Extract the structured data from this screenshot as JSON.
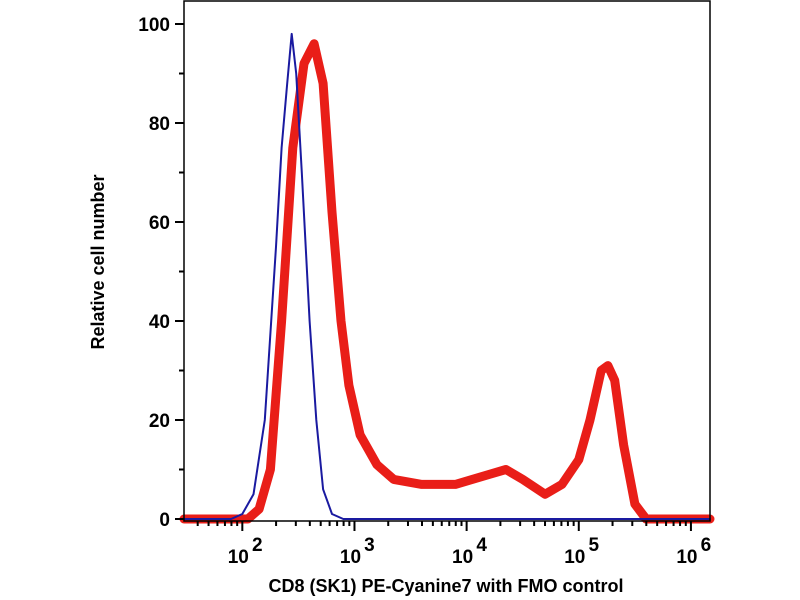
{
  "chart_data": {
    "type": "line",
    "title": "",
    "xlabel": "CD8 (SK1) PE-Cyanine7 with FMO control",
    "ylabel": "Relative cell number",
    "x_scale": "log10",
    "xlim_log10": [
      1.48,
      6.17
    ],
    "ylim": [
      0,
      104
    ],
    "y_ticks": [
      0,
      20,
      40,
      60,
      80,
      100
    ],
    "x_ticks_log10": [
      2,
      3,
      4,
      5,
      6
    ],
    "x_tick_labels": [
      {
        "base": "10",
        "exp": "2"
      },
      {
        "base": "10",
        "exp": "3"
      },
      {
        "base": "10",
        "exp": "4"
      },
      {
        "base": "10",
        "exp": "5"
      },
      {
        "base": "10",
        "exp": "6"
      }
    ],
    "grid": false,
    "series": [
      {
        "name": "FMO control",
        "color": "#1a1aa0",
        "points_log10x": [
          [
            1.48,
            0
          ],
          [
            1.9,
            0
          ],
          [
            2.0,
            1
          ],
          [
            2.1,
            5
          ],
          [
            2.2,
            20
          ],
          [
            2.3,
            55
          ],
          [
            2.35,
            75
          ],
          [
            2.4,
            88
          ],
          [
            2.44,
            98
          ],
          [
            2.48,
            90
          ],
          [
            2.53,
            70
          ],
          [
            2.6,
            40
          ],
          [
            2.66,
            20
          ],
          [
            2.72,
            6
          ],
          [
            2.8,
            1
          ],
          [
            2.9,
            0
          ],
          [
            6.17,
            0
          ]
        ]
      },
      {
        "name": "CD8 (SK1) PE-Cyanine7",
        "color": "#e8120c",
        "points_log10x": [
          [
            1.48,
            0
          ],
          [
            2.05,
            0
          ],
          [
            2.15,
            2
          ],
          [
            2.25,
            10
          ],
          [
            2.35,
            40
          ],
          [
            2.45,
            75
          ],
          [
            2.55,
            92
          ],
          [
            2.64,
            96
          ],
          [
            2.72,
            88
          ],
          [
            2.8,
            62
          ],
          [
            2.88,
            40
          ],
          [
            2.95,
            27
          ],
          [
            3.05,
            17
          ],
          [
            3.2,
            11
          ],
          [
            3.35,
            8
          ],
          [
            3.6,
            7
          ],
          [
            3.9,
            7
          ],
          [
            4.05,
            8
          ],
          [
            4.2,
            9
          ],
          [
            4.35,
            10
          ],
          [
            4.5,
            8
          ],
          [
            4.7,
            5
          ],
          [
            4.85,
            7
          ],
          [
            5.0,
            12
          ],
          [
            5.1,
            20
          ],
          [
            5.2,
            30
          ],
          [
            5.26,
            31
          ],
          [
            5.32,
            28
          ],
          [
            5.4,
            15
          ],
          [
            5.5,
            3
          ],
          [
            5.6,
            0
          ],
          [
            6.17,
            0
          ]
        ]
      }
    ]
  }
}
